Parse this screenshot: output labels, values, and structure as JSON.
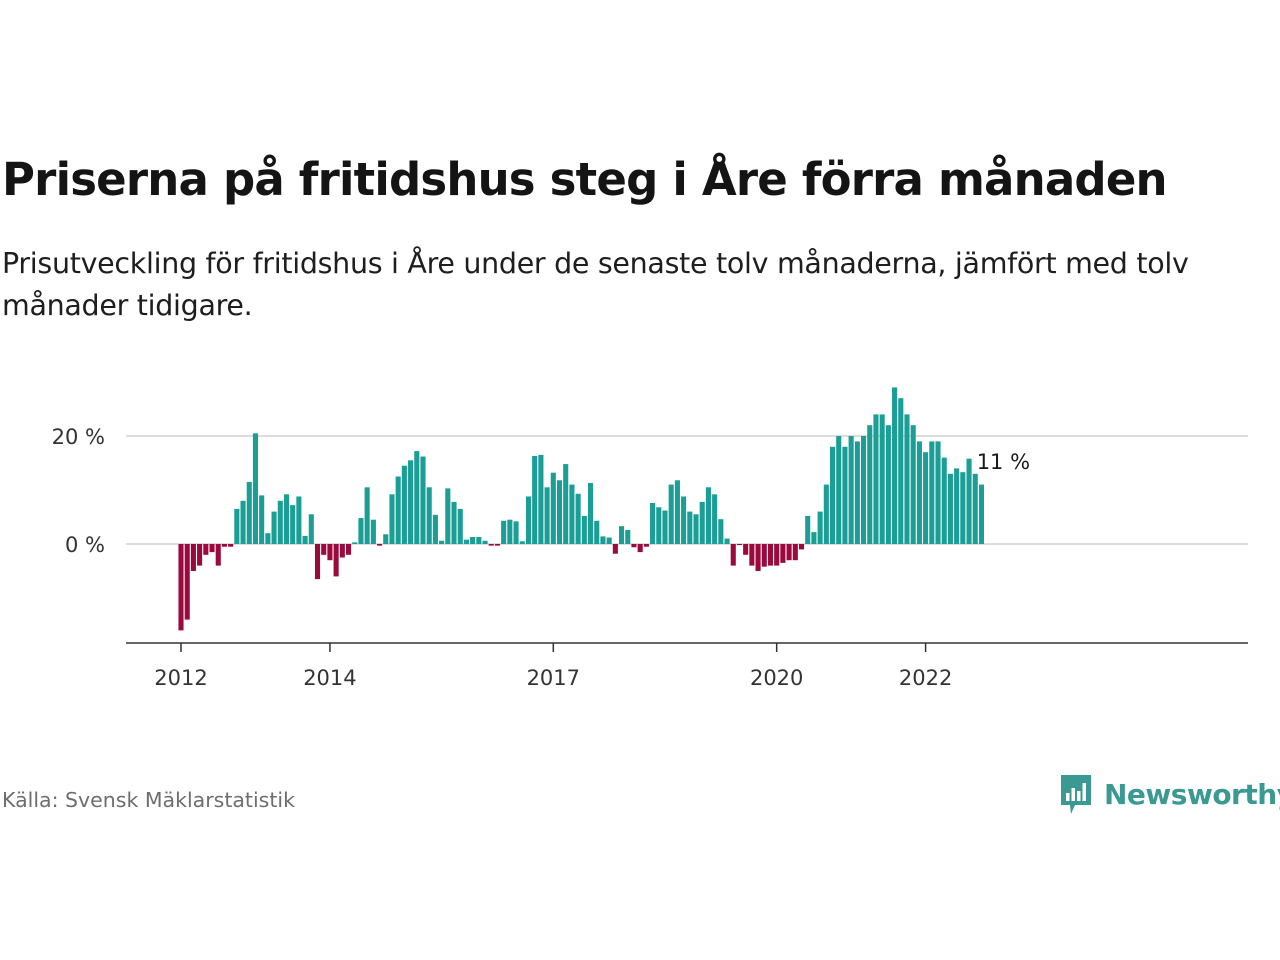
{
  "title": "Priserna på fritidshus steg i Åre förra månaden",
  "subtitle": "Prisutveckling för fritidshus i Åre under de senaste tolv månaderna, jämfört med tolv månader tidigare.",
  "source": "Källa: Svensk Mäklarstatistik",
  "logo": {
    "text": "Newsworthy",
    "icon": "newsworthy-chart-bubble-icon",
    "color": "#3a9a93"
  },
  "colors": {
    "positive": "#1a9e96",
    "negative": "#9b0a3c",
    "grid": "#dddddd",
    "axis": "#333333"
  },
  "chart_data": {
    "type": "bar",
    "title": "Priserna på fritidshus steg i Åre förra månaden",
    "xlabel": "",
    "ylabel": "",
    "ylim": [
      -17,
      30
    ],
    "y_ticks": [
      {
        "value": 0,
        "label": "0 %"
      },
      {
        "value": 20,
        "label": "20 %"
      }
    ],
    "x_ticks": [
      {
        "label": "2012",
        "value": "2012-01"
      },
      {
        "label": "2014",
        "value": "2014-01"
      },
      {
        "label": "2017",
        "value": "2017-01"
      },
      {
        "label": "2020",
        "value": "2020-01"
      },
      {
        "label": "2022",
        "value": "2022-01"
      }
    ],
    "grid": true,
    "start": "2012-01",
    "annotation": {
      "label": "11 %",
      "value": "2023-01"
    },
    "values": [
      -16,
      -14,
      -5,
      -4,
      -2,
      -1.5,
      -4,
      -0.5,
      -0.5,
      6.5,
      8,
      11.5,
      20.5,
      9,
      2,
      6,
      8,
      9.2,
      7.2,
      8.8,
      1.5,
      5.5,
      -6.5,
      -2,
      -3,
      -6,
      -2.5,
      -2,
      0.3,
      4.8,
      10.5,
      4.5,
      -0.3,
      1.8,
      9.2,
      12.5,
      14.5,
      15.5,
      17.2,
      16.2,
      10.5,
      5.4,
      0.6,
      10.3,
      7.8,
      6.5,
      0.8,
      1.3,
      1.3,
      0.6,
      -0.3,
      -0.3,
      4.3,
      4.5,
      4.2,
      0.5,
      8.8,
      16.3,
      16.5,
      10.5,
      13.2,
      11.8,
      14.8,
      11,
      9.3,
      5.2,
      11.3,
      4.3,
      1.4,
      1.2,
      -1.8,
      3.3,
      2.6,
      -0.6,
      -1.5,
      -0.5,
      7.6,
      6.8,
      6.2,
      11,
      11.8,
      8.8,
      6,
      5.5,
      7.8,
      10.5,
      9.2,
      4.6,
      1,
      -4,
      -0.2,
      -2,
      -4,
      -5,
      -4.2,
      -4,
      -4,
      -3.5,
      -3,
      -3,
      -1,
      5.2,
      2.2,
      6,
      11,
      18,
      20,
      18,
      20,
      19,
      20,
      22,
      24,
      24,
      22,
      29,
      27,
      24,
      22,
      19,
      17,
      19,
      19,
      16,
      13,
      14,
      13.3,
      15.8,
      13,
      11
    ]
  }
}
